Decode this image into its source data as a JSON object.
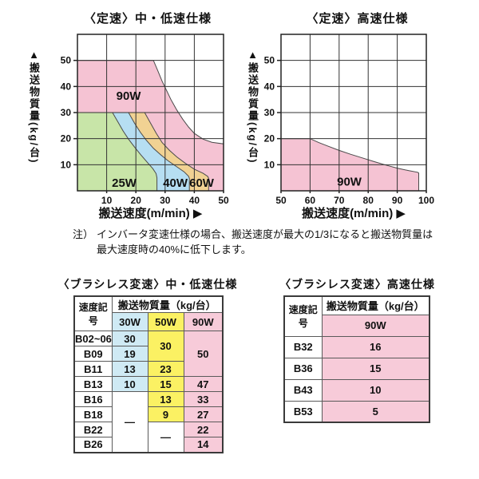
{
  "colors": {
    "chart_pink": "#f5c3d3",
    "chart_green": "#c8e5a8",
    "chart_blue": "#b6def2",
    "chart_sand": "#f1d293",
    "table_pink": "#f7cbd9",
    "table_blue": "#cfeaf4",
    "table_yellow": "#fbf163",
    "grid_line": "#333333",
    "curve_line": "#4a4a4a"
  },
  "note": {
    "prefix": "注）",
    "line1": "インバータ変速仕様の場合、搬送速度が最大の1/3になると搬送物質量は",
    "line2": "最大速度時の40%に低下します。"
  },
  "chart_data": [
    {
      "type": "area",
      "id": "constant-speed-low",
      "title": "〈定速〉中・低速仕様",
      "xlabel": "搬送速度(m/min) ▶",
      "ylabel": "▲搬送物質量(kg/台)",
      "xlim": [
        0,
        50
      ],
      "ylim": [
        0,
        60
      ],
      "xticks": [
        10,
        20,
        30,
        40,
        50
      ],
      "yticks": [
        10,
        20,
        30,
        40,
        50
      ],
      "grid": true,
      "regions": [
        {
          "name": "90W",
          "color_key": "chart_pink",
          "boundary": [
            [
              0,
              50
            ],
            [
              26,
              50
            ],
            [
              27.5,
              46
            ],
            [
              29,
              42
            ],
            [
              30.5,
              38.5
            ],
            [
              32,
              35
            ],
            [
              34,
              31
            ],
            [
              36,
              27.5
            ],
            [
              38,
              24.5
            ],
            [
              40,
              22
            ],
            [
              43,
              19.8
            ],
            [
              46,
              18.6
            ],
            [
              50,
              18
            ]
          ]
        },
        {
          "name": "60W",
          "color_key": "chart_sand",
          "boundary": [
            [
              0,
              30
            ],
            [
              23,
              30
            ],
            [
              25,
              26
            ],
            [
              27,
              22
            ],
            [
              29,
              18.5
            ],
            [
              31.5,
              15.5
            ],
            [
              34,
              13
            ],
            [
              37,
              10.5
            ],
            [
              40,
              8.3
            ],
            [
              43,
              6.7
            ],
            [
              44.6,
              5.5
            ],
            [
              44.9,
              4.8
            ]
          ]
        },
        {
          "name": "40W",
          "color_key": "chart_blue",
          "boundary": [
            [
              0,
              30
            ],
            [
              17.5,
              30
            ],
            [
              19.5,
              26
            ],
            [
              21.5,
              22.5
            ],
            [
              23.5,
              19.5
            ],
            [
              26,
              16.3
            ],
            [
              28.5,
              13.8
            ],
            [
              31,
              11.5
            ],
            [
              34,
              9.2
            ],
            [
              36.5,
              7.3
            ],
            [
              38,
              5.6
            ],
            [
              38.3,
              4.8
            ]
          ]
        },
        {
          "name": "25W",
          "color_key": "chart_green",
          "boundary": [
            [
              0,
              30
            ],
            [
              12,
              30
            ],
            [
              13.8,
              26.5
            ],
            [
              15.6,
              23
            ],
            [
              17.5,
              19.8
            ],
            [
              19.5,
              16.8
            ],
            [
              21.7,
              13.8
            ],
            [
              24,
              10.8
            ],
            [
              25.8,
              8.5
            ],
            [
              26.9,
              6.6
            ],
            [
              27.2,
              5
            ]
          ]
        }
      ],
      "region_labels": [
        {
          "text": "90W",
          "x": 17.5,
          "y": 36.5
        },
        {
          "text": "25W",
          "x": 16,
          "y": 3
        },
        {
          "text": "40W",
          "x": 33.5,
          "y": 3
        },
        {
          "text": "60W",
          "x": 42.5,
          "y": 3
        }
      ]
    },
    {
      "type": "area",
      "id": "constant-speed-high",
      "title": "〈定速〉高速仕様",
      "xlabel": "搬送速度(m/min) ▶",
      "ylabel": "▲搬送物質量(kg/台)",
      "xlim": [
        50,
        100
      ],
      "ylim": [
        0,
        60
      ],
      "xticks": [
        50,
        60,
        70,
        80,
        90,
        100
      ],
      "yticks": [
        10,
        20,
        30,
        40,
        50
      ],
      "grid": true,
      "regions": [
        {
          "name": "90W",
          "color_key": "chart_pink",
          "boundary": [
            [
              50,
              20
            ],
            [
              60,
              20
            ],
            [
              63,
              18.5
            ],
            [
              66,
              17.2
            ],
            [
              70,
              15.5
            ],
            [
              74,
              14
            ],
            [
              78,
              12.6
            ],
            [
              82,
              11.2
            ],
            [
              86,
              9.9
            ],
            [
              90,
              8.7
            ],
            [
              94,
              7.7
            ],
            [
              97,
              7.1
            ],
            [
              97.4,
              6.8
            ]
          ]
        }
      ],
      "region_labels": [
        {
          "text": "90W",
          "x": 73.5,
          "y": 3.5
        }
      ]
    },
    {
      "type": "table",
      "id": "brushless-low",
      "title": "〈ブラシレス変速〉中・低速仕様",
      "corner": "速度記号",
      "group_header": "搬送物質量（kg/台）",
      "watts": [
        "30W",
        "50W",
        "90W"
      ],
      "rows": [
        {
          "label": "B02~06",
          "v30": "30",
          "v50": "30",
          "v90": "50"
        },
        {
          "label": "B09",
          "v30": "19"
        },
        {
          "label": "B11",
          "v30": "13",
          "v50": "23"
        },
        {
          "label": "B13",
          "v30": "10",
          "v50": "15",
          "v90": "47"
        },
        {
          "label": "B16",
          "v30": "—",
          "v50": "13",
          "v90": "33"
        },
        {
          "label": "B18",
          "v50": "9",
          "v90": "27"
        },
        {
          "label": "B22",
          "v50": "—",
          "v90": "22"
        },
        {
          "label": "B26",
          "v90": "14"
        }
      ]
    },
    {
      "type": "table",
      "id": "brushless-high",
      "title": "〈ブラシレス変速〉高速仕様",
      "corner": "速度記号",
      "group_header": "搬送物質量（kg/台）",
      "watts": [
        "90W"
      ],
      "rows": [
        {
          "label": "B32",
          "v90": "16"
        },
        {
          "label": "B36",
          "v90": "15"
        },
        {
          "label": "B43",
          "v90": "10"
        },
        {
          "label": "B53",
          "v90": "5"
        }
      ]
    }
  ]
}
